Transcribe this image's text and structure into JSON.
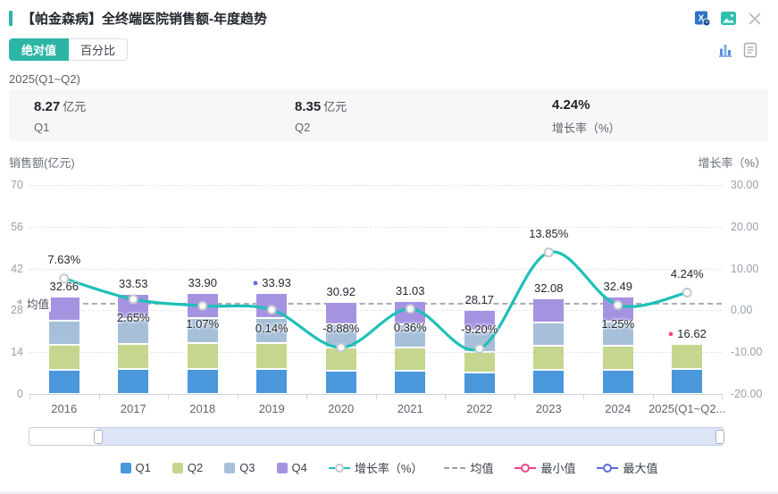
{
  "header": {
    "title": "【帕金森病】全终端医院销售额-年度趋势"
  },
  "view_tabs": {
    "absolute": "绝对值",
    "percent": "百分比"
  },
  "period": "2025(Q1~Q2)",
  "stats": [
    {
      "value": "8.27",
      "unit": "亿元",
      "label": "Q1"
    },
    {
      "value": "8.35",
      "unit": "亿元",
      "label": "Q2"
    },
    {
      "value": "4.24%",
      "unit": "",
      "label": "增长率（%）"
    }
  ],
  "chart_data": {
    "type": "bar",
    "subtype": "stacked-bar-with-growth-line",
    "categories": [
      "2016",
      "2017",
      "2018",
      "2019",
      "2020",
      "2021",
      "2022",
      "2023",
      "2024",
      "2025(Q1~Q2..."
    ],
    "series": [
      {
        "name": "销售额(亿元)",
        "type": "stacked-bar",
        "stack_labels": [
          "Q1",
          "Q2",
          "Q3",
          "Q4"
        ],
        "totals": [
          32.66,
          33.53,
          33.9,
          33.93,
          30.92,
          31.03,
          28.17,
          32.08,
          32.49,
          16.62
        ]
      },
      {
        "name": "增长率（%）",
        "type": "line",
        "values": [
          7.63,
          2.65,
          1.07,
          0.14,
          -8.88,
          0.36,
          -9.2,
          13.85,
          1.25,
          4.24
        ]
      }
    ],
    "last_bar_segments": [
      {
        "label": "Q1",
        "value": 8.27
      },
      {
        "label": "Q2",
        "value": 8.35
      }
    ],
    "mean_value": 30.53,
    "mean_label": "均值",
    "max_point": {
      "index": 3,
      "value": 33.93
    },
    "min_point": {
      "index": 9,
      "value": 16.62
    },
    "left_axis": {
      "title": "销售额(亿元)",
      "ticks": [
        0,
        14,
        28,
        42,
        56,
        70
      ]
    },
    "right_axis": {
      "title": "增长率（%）",
      "ticks": [
        -20,
        -10,
        0,
        10,
        20,
        30
      ]
    },
    "legend": [
      {
        "label": "Q1",
        "marker": "square",
        "color": "#4a97dc"
      },
      {
        "label": "Q2",
        "marker": "square",
        "color": "#c5d68f"
      },
      {
        "label": "Q3",
        "marker": "square",
        "color": "#a7c0da"
      },
      {
        "label": "Q4",
        "marker": "square",
        "color": "#a593e2"
      },
      {
        "label": "增长率（%）",
        "marker": "line-circle",
        "color": "#1ec0b8"
      },
      {
        "label": "均值",
        "marker": "dashed",
        "color": "#9aa0a6"
      },
      {
        "label": "最小值",
        "marker": "ring",
        "color": "#f4438a"
      },
      {
        "label": "最大值",
        "marker": "ring",
        "color": "#5b6be0"
      }
    ]
  },
  "colors": {
    "accent": "#2cb5a5",
    "line": "#1ec0b8",
    "q1": "#4a97dc",
    "q2": "#c5d68f",
    "q3": "#a7c0da",
    "q4": "#a593e2",
    "min": "#f4438a",
    "max": "#5b6be0"
  }
}
